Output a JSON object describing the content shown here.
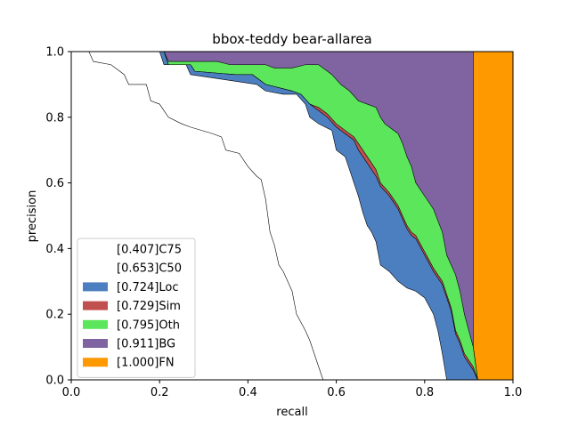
{
  "chart_data": {
    "type": "area",
    "title": "bbox-teddy bear-allarea",
    "xlabel": "recall",
    "ylabel": "precision",
    "xlim": [
      0,
      1
    ],
    "ylim": [
      0,
      1
    ],
    "x_ticks": [
      "0.0",
      "0.2",
      "0.4",
      "0.6",
      "0.8",
      "1.0"
    ],
    "y_ticks": [
      "0.0",
      "0.2",
      "0.4",
      "0.6",
      "0.8",
      "1.0"
    ],
    "grid": false,
    "legend_position": "lower-left",
    "series": [
      {
        "name": "[0.407]C75",
        "color": "#ffffff",
        "points": [
          [
            0,
            1
          ],
          [
            0.04,
            1
          ],
          [
            0.05,
            0.97
          ],
          [
            0.09,
            0.96
          ],
          [
            0.12,
            0.93
          ],
          [
            0.13,
            0.9
          ],
          [
            0.17,
            0.9
          ],
          [
            0.18,
            0.85
          ],
          [
            0.2,
            0.84
          ],
          [
            0.22,
            0.8
          ],
          [
            0.25,
            0.78
          ],
          [
            0.27,
            0.77
          ],
          [
            0.32,
            0.75
          ],
          [
            0.34,
            0.74
          ],
          [
            0.35,
            0.7
          ],
          [
            0.38,
            0.69
          ],
          [
            0.4,
            0.65
          ],
          [
            0.42,
            0.62
          ],
          [
            0.43,
            0.61
          ],
          [
            0.44,
            0.55
          ],
          [
            0.45,
            0.45
          ],
          [
            0.46,
            0.41
          ],
          [
            0.47,
            0.35
          ],
          [
            0.48,
            0.33
          ],
          [
            0.49,
            0.3
          ],
          [
            0.5,
            0.27
          ],
          [
            0.51,
            0.2
          ],
          [
            0.53,
            0.15
          ],
          [
            0.54,
            0.12
          ],
          [
            0.55,
            0.08
          ],
          [
            0.56,
            0.04
          ],
          [
            0.57,
            0
          ]
        ]
      },
      {
        "name": "[0.653]C50",
        "color": "#ffffff",
        "points": [
          [
            0,
            1
          ],
          [
            0.2,
            1
          ],
          [
            0.21,
            0.96
          ],
          [
            0.26,
            0.96
          ],
          [
            0.27,
            0.93
          ],
          [
            0.37,
            0.91
          ],
          [
            0.42,
            0.9
          ],
          [
            0.44,
            0.88
          ],
          [
            0.48,
            0.87
          ],
          [
            0.51,
            0.87
          ],
          [
            0.53,
            0.84
          ],
          [
            0.54,
            0.8
          ],
          [
            0.56,
            0.78
          ],
          [
            0.59,
            0.76
          ],
          [
            0.6,
            0.7
          ],
          [
            0.62,
            0.68
          ],
          [
            0.63,
            0.64
          ],
          [
            0.64,
            0.6
          ],
          [
            0.65,
            0.56
          ],
          [
            0.66,
            0.51
          ],
          [
            0.67,
            0.47
          ],
          [
            0.68,
            0.45
          ],
          [
            0.69,
            0.42
          ],
          [
            0.7,
            0.35
          ],
          [
            0.72,
            0.33
          ],
          [
            0.74,
            0.3
          ],
          [
            0.76,
            0.28
          ],
          [
            0.78,
            0.27
          ],
          [
            0.8,
            0.25
          ],
          [
            0.82,
            0.2
          ],
          [
            0.83,
            0.15
          ],
          [
            0.84,
            0.08
          ],
          [
            0.85,
            0
          ]
        ]
      },
      {
        "name": "[0.724]Loc",
        "color": "#4c7fc0",
        "points": [
          [
            0,
            1
          ],
          [
            0.21,
            1
          ],
          [
            0.22,
            0.96
          ],
          [
            0.27,
            0.96
          ],
          [
            0.28,
            0.94
          ],
          [
            0.37,
            0.93
          ],
          [
            0.41,
            0.93
          ],
          [
            0.44,
            0.9
          ],
          [
            0.5,
            0.88
          ],
          [
            0.52,
            0.87
          ],
          [
            0.54,
            0.84
          ],
          [
            0.56,
            0.82
          ],
          [
            0.58,
            0.8
          ],
          [
            0.6,
            0.77
          ],
          [
            0.62,
            0.75
          ],
          [
            0.64,
            0.73
          ],
          [
            0.65,
            0.7
          ],
          [
            0.66,
            0.68
          ],
          [
            0.67,
            0.66
          ],
          [
            0.68,
            0.64
          ],
          [
            0.69,
            0.62
          ],
          [
            0.7,
            0.59
          ],
          [
            0.72,
            0.56
          ],
          [
            0.74,
            0.52
          ],
          [
            0.75,
            0.49
          ],
          [
            0.76,
            0.46
          ],
          [
            0.77,
            0.44
          ],
          [
            0.78,
            0.43
          ],
          [
            0.8,
            0.38
          ],
          [
            0.82,
            0.33
          ],
          [
            0.84,
            0.29
          ],
          [
            0.86,
            0.21
          ],
          [
            0.87,
            0.14
          ],
          [
            0.88,
            0.11
          ],
          [
            0.89,
            0.07
          ],
          [
            0.9,
            0.05
          ],
          [
            0.91,
            0.03
          ],
          [
            0.92,
            0
          ]
        ]
      },
      {
        "name": "[0.729]Sim",
        "color": "#c0504d",
        "points": [
          [
            0,
            1
          ],
          [
            0.21,
            1
          ],
          [
            0.22,
            0.96
          ],
          [
            0.27,
            0.96
          ],
          [
            0.28,
            0.94
          ],
          [
            0.37,
            0.93
          ],
          [
            0.41,
            0.93
          ],
          [
            0.44,
            0.9
          ],
          [
            0.5,
            0.88
          ],
          [
            0.52,
            0.87
          ],
          [
            0.54,
            0.84
          ],
          [
            0.56,
            0.83
          ],
          [
            0.58,
            0.81
          ],
          [
            0.6,
            0.78
          ],
          [
            0.62,
            0.76
          ],
          [
            0.64,
            0.74
          ],
          [
            0.65,
            0.72
          ],
          [
            0.66,
            0.7
          ],
          [
            0.67,
            0.68
          ],
          [
            0.68,
            0.66
          ],
          [
            0.69,
            0.64
          ],
          [
            0.7,
            0.6
          ],
          [
            0.72,
            0.57
          ],
          [
            0.74,
            0.53
          ],
          [
            0.75,
            0.5
          ],
          [
            0.76,
            0.47
          ],
          [
            0.77,
            0.45
          ],
          [
            0.78,
            0.44
          ],
          [
            0.8,
            0.39
          ],
          [
            0.82,
            0.34
          ],
          [
            0.84,
            0.3
          ],
          [
            0.86,
            0.22
          ],
          [
            0.87,
            0.15
          ],
          [
            0.88,
            0.12
          ],
          [
            0.89,
            0.08
          ],
          [
            0.9,
            0.06
          ],
          [
            0.91,
            0.04
          ],
          [
            0.92,
            0
          ]
        ]
      },
      {
        "name": "[0.795]Oth",
        "color": "#5ce65c",
        "points": [
          [
            0,
            1
          ],
          [
            0.21,
            1
          ],
          [
            0.22,
            0.97
          ],
          [
            0.33,
            0.97
          ],
          [
            0.36,
            0.96
          ],
          [
            0.44,
            0.96
          ],
          [
            0.46,
            0.95
          ],
          [
            0.5,
            0.95
          ],
          [
            0.53,
            0.96
          ],
          [
            0.56,
            0.96
          ],
          [
            0.58,
            0.94
          ],
          [
            0.59,
            0.93
          ],
          [
            0.61,
            0.9
          ],
          [
            0.63,
            0.88
          ],
          [
            0.65,
            0.85
          ],
          [
            0.67,
            0.84
          ],
          [
            0.69,
            0.83
          ],
          [
            0.7,
            0.8
          ],
          [
            0.71,
            0.78
          ],
          [
            0.72,
            0.77
          ],
          [
            0.74,
            0.75
          ],
          [
            0.75,
            0.72
          ],
          [
            0.76,
            0.68
          ],
          [
            0.77,
            0.65
          ],
          [
            0.78,
            0.6
          ],
          [
            0.8,
            0.56
          ],
          [
            0.82,
            0.52
          ],
          [
            0.84,
            0.45
          ],
          [
            0.85,
            0.38
          ],
          [
            0.87,
            0.32
          ],
          [
            0.88,
            0.27
          ],
          [
            0.89,
            0.2
          ],
          [
            0.9,
            0.15
          ],
          [
            0.91,
            0.1
          ],
          [
            0.92,
            0
          ]
        ]
      },
      {
        "name": "[0.911]BG",
        "color": "#8064a2",
        "points": [
          [
            0,
            1
          ],
          [
            0.91,
            1
          ],
          [
            0.91,
            0.1
          ],
          [
            0.92,
            0
          ]
        ]
      },
      {
        "name": "[1.000]FN",
        "color": "#ff9900",
        "points": [
          [
            0,
            1
          ],
          [
            0.91,
            1
          ],
          [
            0.92,
            0
          ]
        ]
      }
    ]
  }
}
